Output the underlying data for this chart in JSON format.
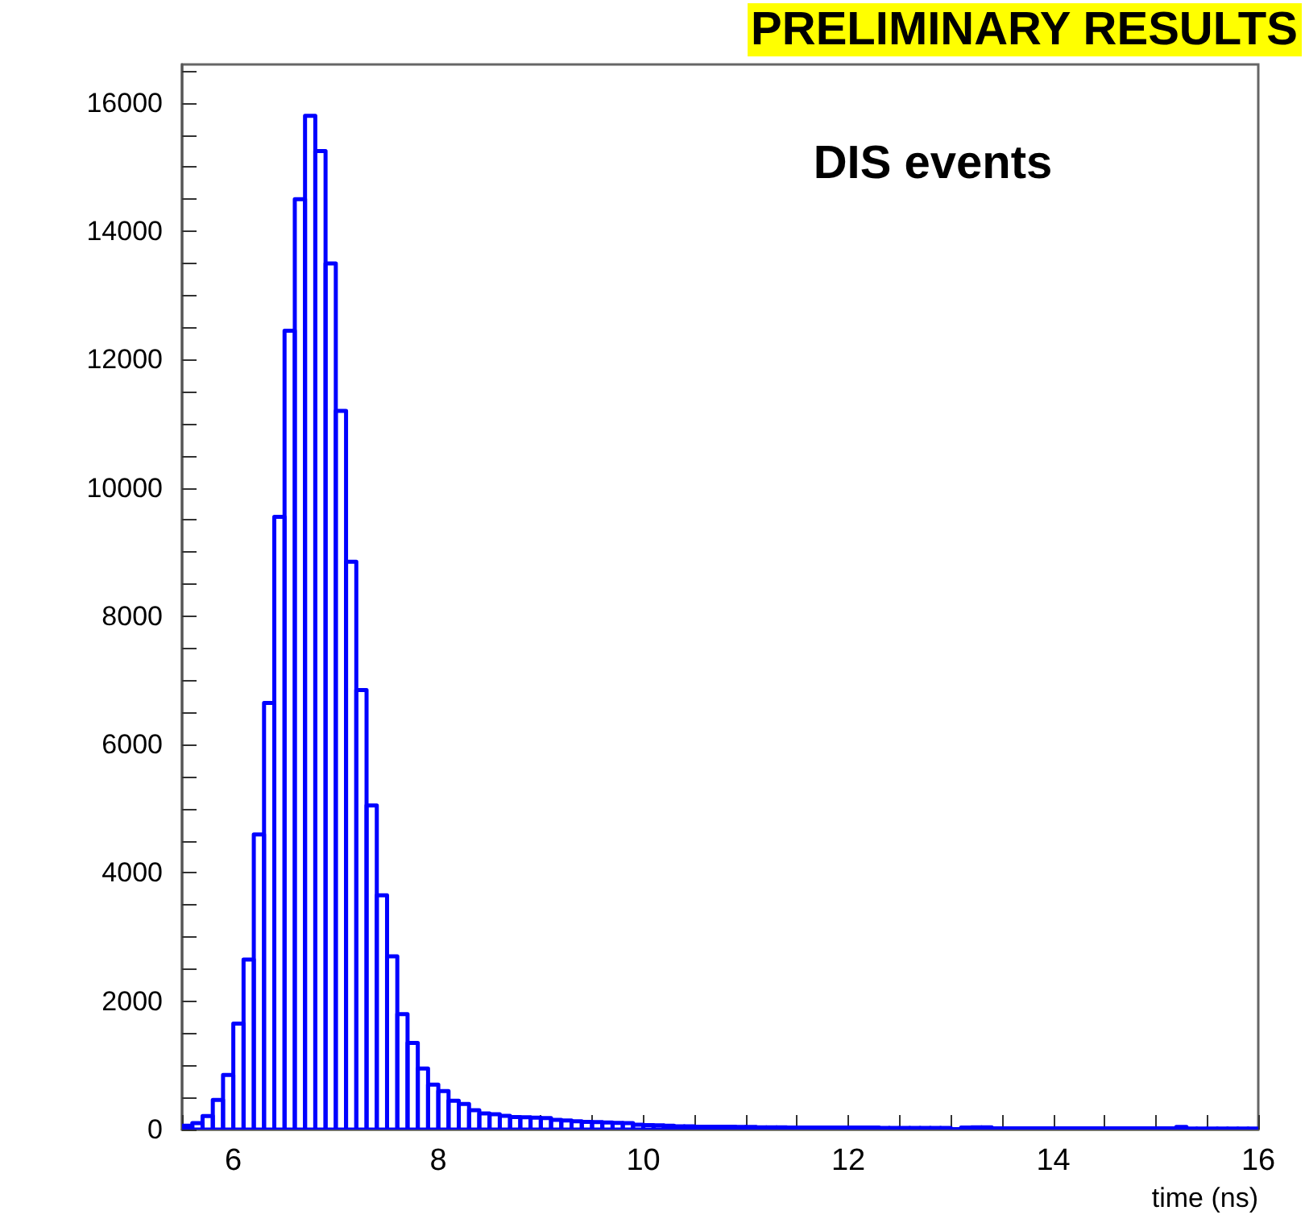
{
  "chart_data": {
    "type": "histogram",
    "xlabel": "time (ns)",
    "annotations": [
      "PRELIMINARY RESULTS",
      "DIS events"
    ],
    "color": "#0000ff",
    "bins": [
      5.5,
      5.6,
      5.7,
      5.8,
      5.9,
      6.0,
      6.1,
      6.2,
      6.3,
      6.4,
      6.5,
      6.6,
      6.7,
      6.8,
      6.9,
      7.0,
      7.1,
      7.2,
      7.3,
      7.4,
      7.5,
      7.6,
      7.7,
      7.8,
      7.9,
      8.0,
      8.1,
      8.2,
      8.3,
      8.4,
      8.5,
      8.6,
      8.7,
      8.8,
      8.9,
      9.0,
      9.1,
      9.2,
      9.3,
      9.4,
      9.5,
      9.6,
      9.7,
      9.8,
      9.9,
      10.0,
      10.1,
      10.2,
      10.3,
      10.4,
      10.5,
      10.6,
      10.7,
      10.8,
      10.9,
      11.0,
      11.1,
      11.2,
      11.3,
      11.4,
      11.5,
      11.6,
      11.7,
      11.8,
      11.9,
      12.0,
      12.1,
      12.2,
      12.3,
      12.4,
      12.5,
      12.6,
      12.7,
      12.8,
      12.9,
      13.0,
      13.1,
      13.2,
      13.3,
      13.4,
      13.5,
      13.6,
      13.7,
      13.8,
      13.9,
      14.0,
      14.1,
      14.2,
      14.3,
      14.4,
      14.5,
      14.6,
      14.7,
      14.8,
      14.9,
      15.0,
      15.1,
      15.2,
      15.3,
      15.4,
      15.5,
      15.6,
      15.7,
      15.8,
      15.9,
      16.0
    ],
    "values": [
      60,
      100,
      210,
      460,
      850,
      1650,
      2650,
      4600,
      6650,
      9550,
      12450,
      14500,
      15800,
      15250,
      13500,
      11200,
      8850,
      6850,
      5050,
      3650,
      2700,
      1800,
      1350,
      950,
      700,
      600,
      450,
      400,
      300,
      250,
      240,
      215,
      195,
      190,
      185,
      180,
      150,
      140,
      130,
      120,
      115,
      110,
      105,
      100,
      75,
      70,
      65,
      60,
      50,
      50,
      45,
      45,
      45,
      45,
      40,
      40,
      35,
      35,
      35,
      30,
      30,
      30,
      30,
      30,
      30,
      30,
      30,
      30,
      25,
      25,
      25,
      25,
      25,
      25,
      25,
      5,
      30,
      35,
      35,
      20,
      20,
      20,
      20,
      20,
      20,
      20,
      20,
      20,
      20,
      20,
      20,
      20,
      20,
      20,
      20,
      20,
      20,
      40,
      15,
      15,
      15,
      15,
      15,
      15,
      15
    ],
    "xlim": [
      5.5,
      16
    ],
    "xticks": [
      {
        "value": 5.5,
        "label": null
      },
      6,
      {
        "value": 6.5,
        "label": null
      },
      {
        "value": 7,
        "label": null
      },
      {
        "value": 7.5,
        "label": null
      },
      8,
      {
        "value": 8.5,
        "label": null
      },
      {
        "value": 9,
        "label": null
      },
      {
        "value": 9.5,
        "label": null
      },
      10,
      {
        "value": 10.5,
        "label": null
      },
      {
        "value": 11,
        "label": null
      },
      {
        "value": 11.5,
        "label": null
      },
      12,
      {
        "value": 12.5,
        "label": null
      },
      {
        "value": 13,
        "label": null
      },
      {
        "value": 13.5,
        "label": null
      },
      14,
      {
        "value": 14.5,
        "label": null
      },
      {
        "value": 15,
        "label": null
      },
      {
        "value": 15.5,
        "label": null
      },
      16
    ],
    "ylim": [
      0,
      16600
    ],
    "yticks": [
      0,
      {
        "value": 500,
        "label": null
      },
      {
        "value": 1000,
        "label": null
      },
      {
        "value": 1500,
        "label": null
      },
      2000,
      {
        "value": 2500,
        "label": null
      },
      {
        "value": 3000,
        "label": null
      },
      {
        "value": 3500,
        "label": null
      },
      4000,
      {
        "value": 4500,
        "label": null
      },
      {
        "value": 5000,
        "label": null
      },
      {
        "value": 5500,
        "label": null
      },
      6000,
      {
        "value": 6500,
        "label": null
      },
      {
        "value": 7000,
        "label": null
      },
      {
        "value": 7500,
        "label": null
      },
      8000,
      {
        "value": 8500,
        "label": null
      },
      {
        "value": 9000,
        "label": null
      },
      {
        "value": 9500,
        "label": null
      },
      10000,
      {
        "value": 10500,
        "label": null
      },
      {
        "value": 11000,
        "label": null
      },
      {
        "value": 11500,
        "label": null
      },
      12000,
      {
        "value": 12500,
        "label": null
      },
      {
        "value": 13000,
        "label": null
      },
      {
        "value": 13500,
        "label": null
      },
      14000,
      {
        "value": 14500,
        "label": null
      },
      {
        "value": 15000,
        "label": null
      },
      {
        "value": 15500,
        "label": null
      },
      16000,
      {
        "value": 16500,
        "label": null
      }
    ],
    "grid": false
  }
}
